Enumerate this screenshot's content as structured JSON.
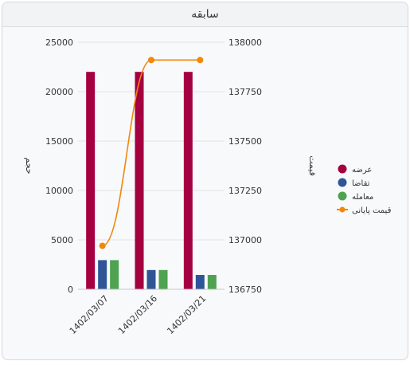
{
  "panel": {
    "title": "سابقه"
  },
  "chart_data": {
    "type": "bar",
    "categories": [
      "1402/03/07",
      "1402/03/16",
      "1402/03/21"
    ],
    "series": [
      {
        "name": "عرضه",
        "kind": "bar",
        "axis": "left",
        "color": "#a50040",
        "values": [
          22000,
          22000,
          22000
        ]
      },
      {
        "name": "تقاضا",
        "kind": "bar",
        "axis": "left",
        "color": "#2f5597",
        "values": [
          2950,
          1950,
          1450
        ]
      },
      {
        "name": "معامله",
        "kind": "bar",
        "axis": "left",
        "color": "#4fa24f",
        "values": [
          2950,
          1950,
          1450
        ]
      },
      {
        "name": "قیمت پایانی",
        "kind": "line",
        "axis": "right",
        "color": "#f0880a",
        "values": [
          136970,
          137910,
          137910
        ]
      }
    ],
    "ylabel": "حجم",
    "y2label": "قیمت",
    "ylim": [
      0,
      25000
    ],
    "y2lim": [
      136750,
      138000
    ],
    "yticks": [
      "0",
      "5000",
      "10000",
      "15000",
      "20000",
      "25000"
    ],
    "y2ticks": [
      "136750",
      "137000",
      "137250",
      "137500",
      "137750",
      "138000"
    ],
    "grid": true,
    "legend": "right"
  }
}
